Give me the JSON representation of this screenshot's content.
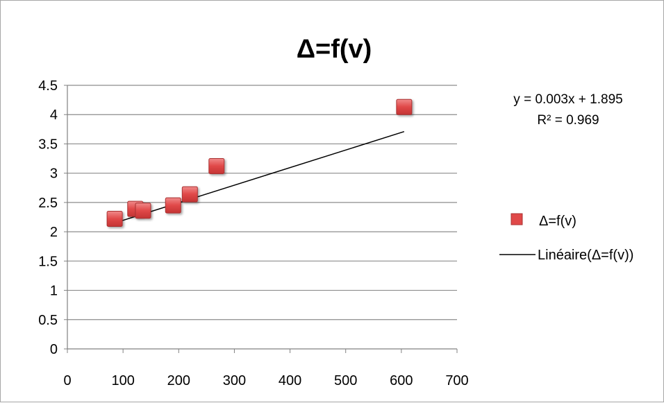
{
  "chart_data": {
    "type": "scatter",
    "title": "Δ=f(v)",
    "xlabel": "",
    "ylabel": "",
    "xlim": [
      0,
      700
    ],
    "ylim": [
      0,
      4.5
    ],
    "xticks": [
      0,
      100,
      200,
      300,
      400,
      500,
      600,
      700
    ],
    "yticks": [
      0,
      0.5,
      1,
      1.5,
      2,
      2.5,
      3,
      3.5,
      4,
      4.5
    ],
    "xtick_labels": [
      "0",
      "100",
      "200",
      "300",
      "400",
      "500",
      "600",
      "700"
    ],
    "ytick_labels": [
      "0",
      "0.5",
      "1",
      "1.5",
      "2",
      "2.5",
      "3",
      "3.5",
      "4",
      "4.5"
    ],
    "grid": "horizontal",
    "series": [
      {
        "name": "Δ=f(v)",
        "marker": "square",
        "color": "#e04848",
        "points": [
          {
            "x": 85,
            "y": 2.22
          },
          {
            "x": 122,
            "y": 2.39
          },
          {
            "x": 136,
            "y": 2.36
          },
          {
            "x": 190,
            "y": 2.45
          },
          {
            "x": 220,
            "y": 2.64
          },
          {
            "x": 268,
            "y": 3.12
          },
          {
            "x": 605,
            "y": 4.13
          }
        ]
      }
    ],
    "trendline": {
      "name": "Linéaire(Δ=f(v))",
      "color": "#000000",
      "type": "linear",
      "x_range": [
        85,
        605
      ],
      "slope": 0.003,
      "intercept": 1.895
    },
    "annotations": {
      "equation": "y = 0.003x + 1.895",
      "r_squared": "R² = 0.969"
    },
    "legend": {
      "placement": "right",
      "entries": [
        "Δ=f(v)",
        "Linéaire(Δ=f(v))"
      ]
    }
  }
}
